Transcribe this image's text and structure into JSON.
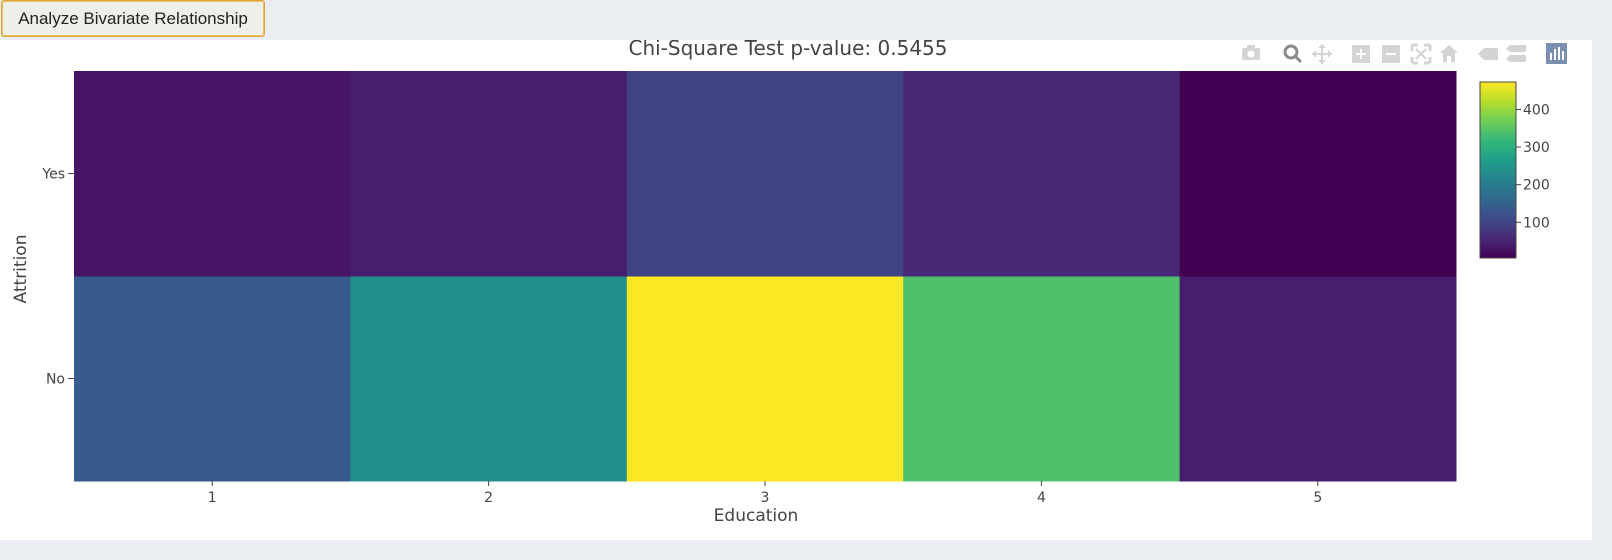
{
  "button": {
    "label": "Analyze Bivariate Relationship"
  },
  "chart_data": {
    "type": "heatmap",
    "title": "Chi-Square Test p-value: 0.5455",
    "xlabel": "Education",
    "ylabel": "Attrition",
    "x": [
      "1",
      "2",
      "3",
      "4",
      "5"
    ],
    "y": [
      "No",
      "Yes"
    ],
    "z": [
      [
        139,
        238,
        473,
        340,
        43
      ],
      [
        31,
        44,
        99,
        58,
        5
      ]
    ],
    "colorscale": "Viridis",
    "colorbar": {
      "ticks": [
        "100",
        "200",
        "300",
        "400"
      ],
      "range": [
        5,
        473
      ]
    }
  },
  "modebar": {
    "icons": [
      "camera-icon",
      "zoom-icon",
      "pan-icon",
      "zoom-in-icon",
      "zoom-out-icon",
      "autoscale-icon",
      "reset-axes-icon",
      "spike-lines-icon",
      "hover-compare-icon",
      "plotly-logo-icon"
    ]
  }
}
